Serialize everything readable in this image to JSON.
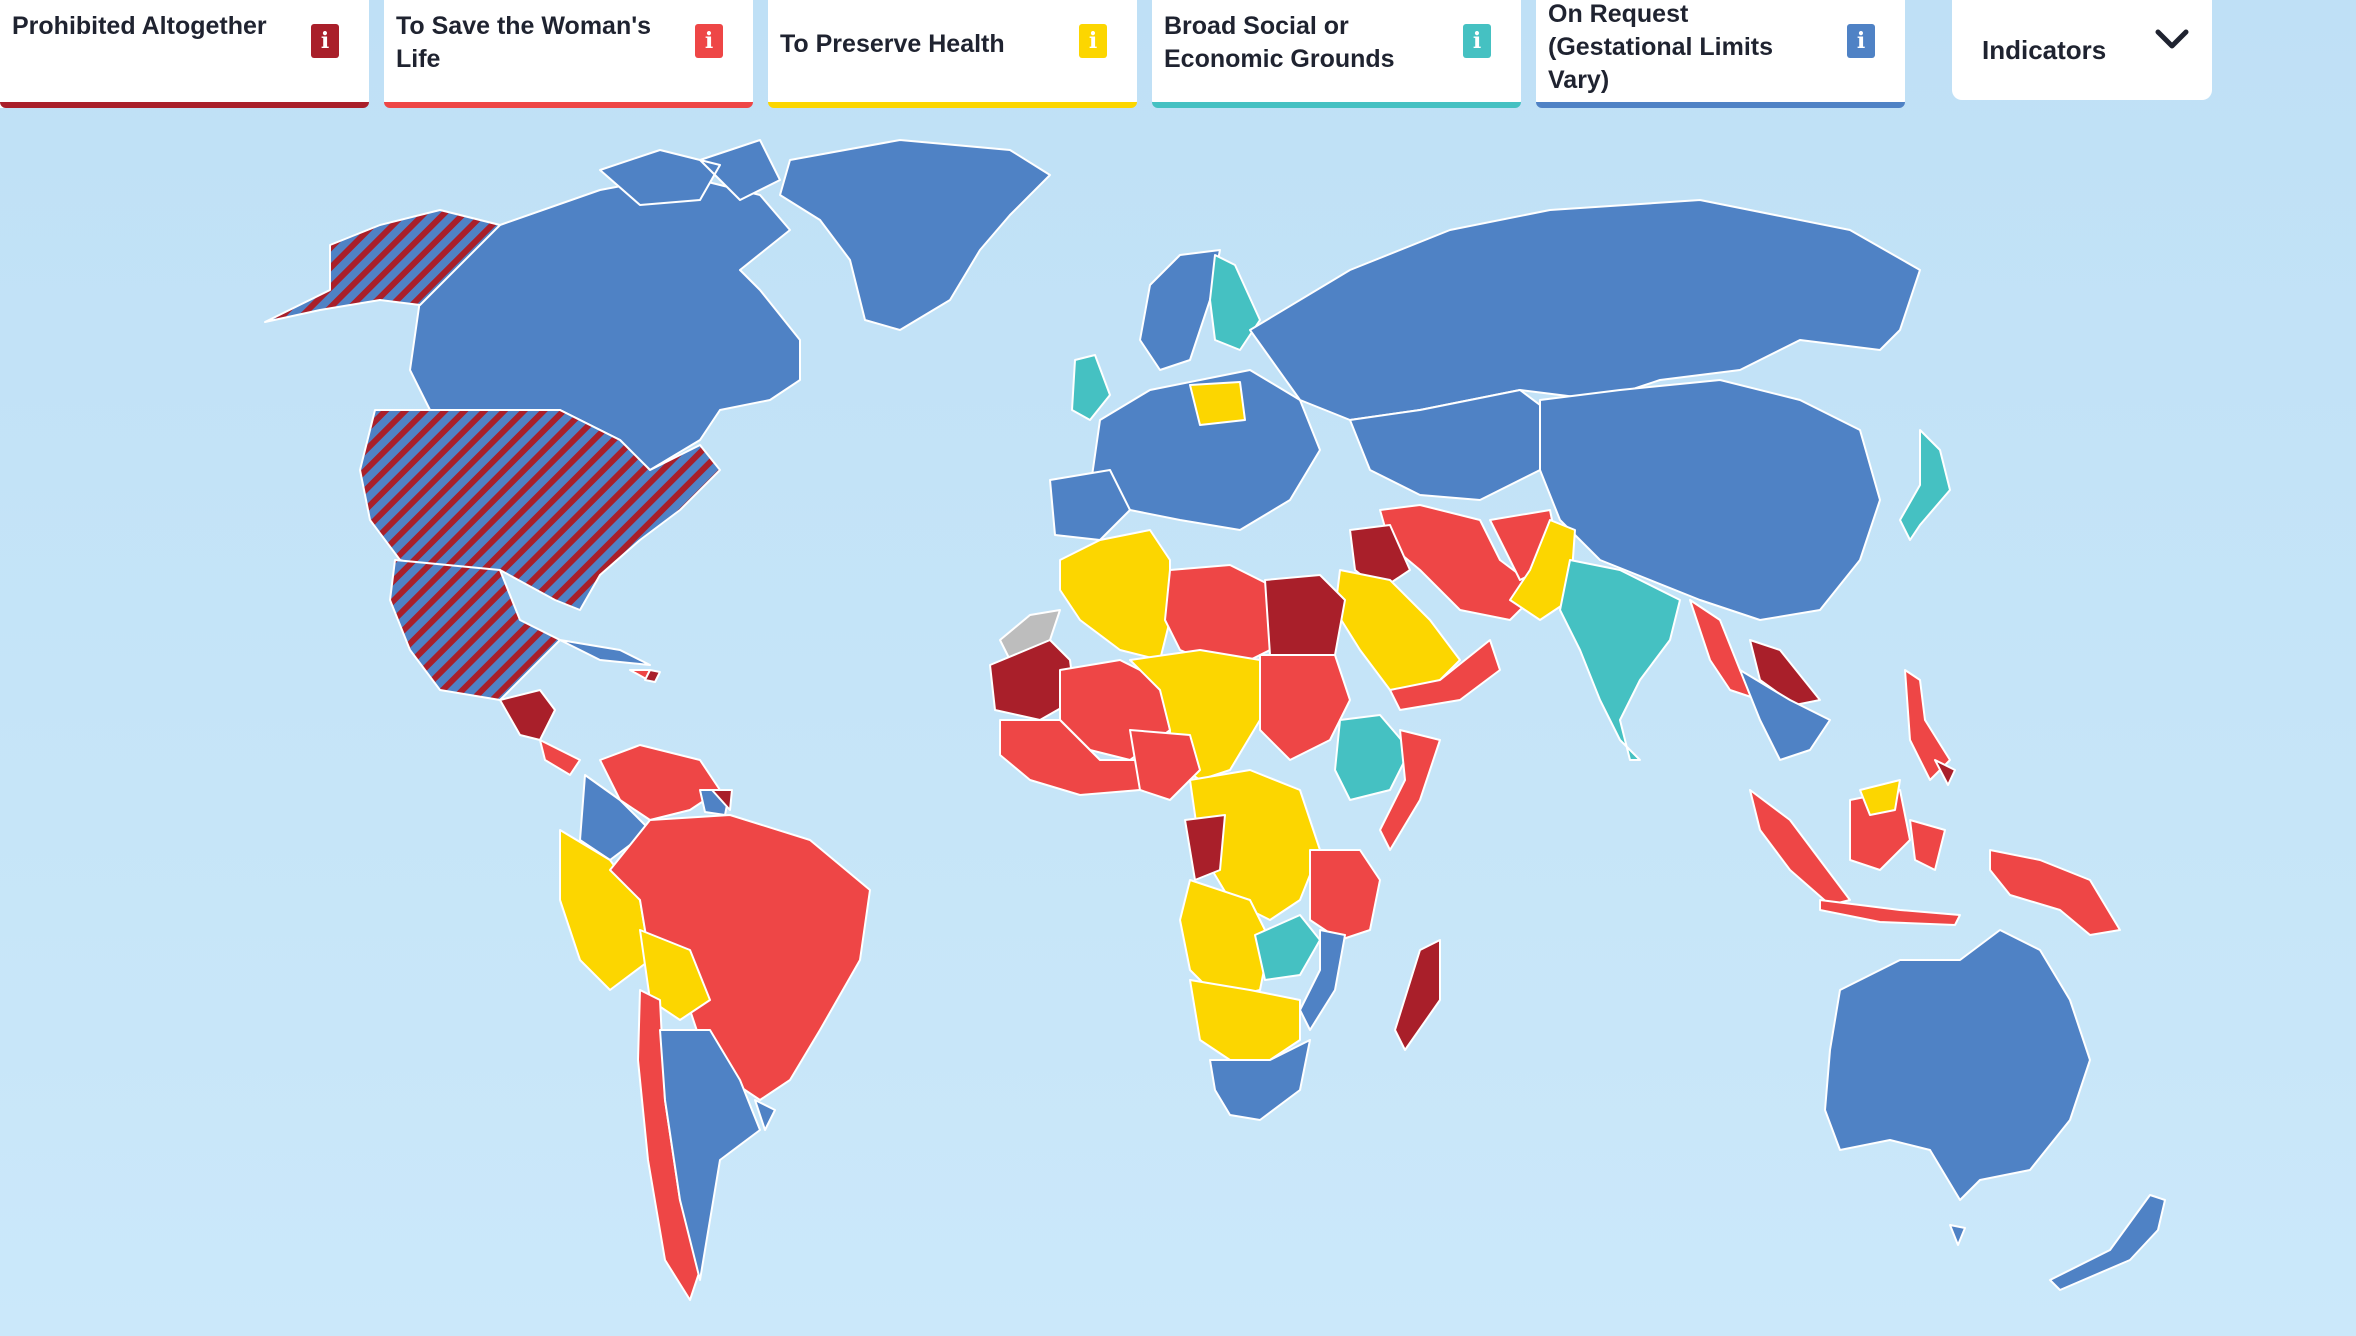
{
  "legend": {
    "items": [
      {
        "label": "Prohibited Altogether",
        "color": "#a91f2a",
        "info_icon": "info-icon"
      },
      {
        "label": "To Save the Woman's Life",
        "color": "#ee4646",
        "info_icon": "info-icon"
      },
      {
        "label": "To Preserve Health",
        "color": "#fcd600",
        "info_icon": "info-icon"
      },
      {
        "label": "Broad Social or Economic Grounds",
        "color": "#45c1c2",
        "info_icon": "info-icon"
      },
      {
        "label": "On Request (Gestational Limits Vary)",
        "color": "#4f82c5",
        "info_icon": "info-icon"
      }
    ],
    "info_glyph": "i"
  },
  "indicators": {
    "label": "Indicators",
    "icon": "chevron-down-icon"
  },
  "map": {
    "ocean_color": "#c4e3f7",
    "no_data_color": "#bdbdbd",
    "hatched_color_a": "#4f82c5",
    "hatched_color_b": "#a91f2a"
  }
}
